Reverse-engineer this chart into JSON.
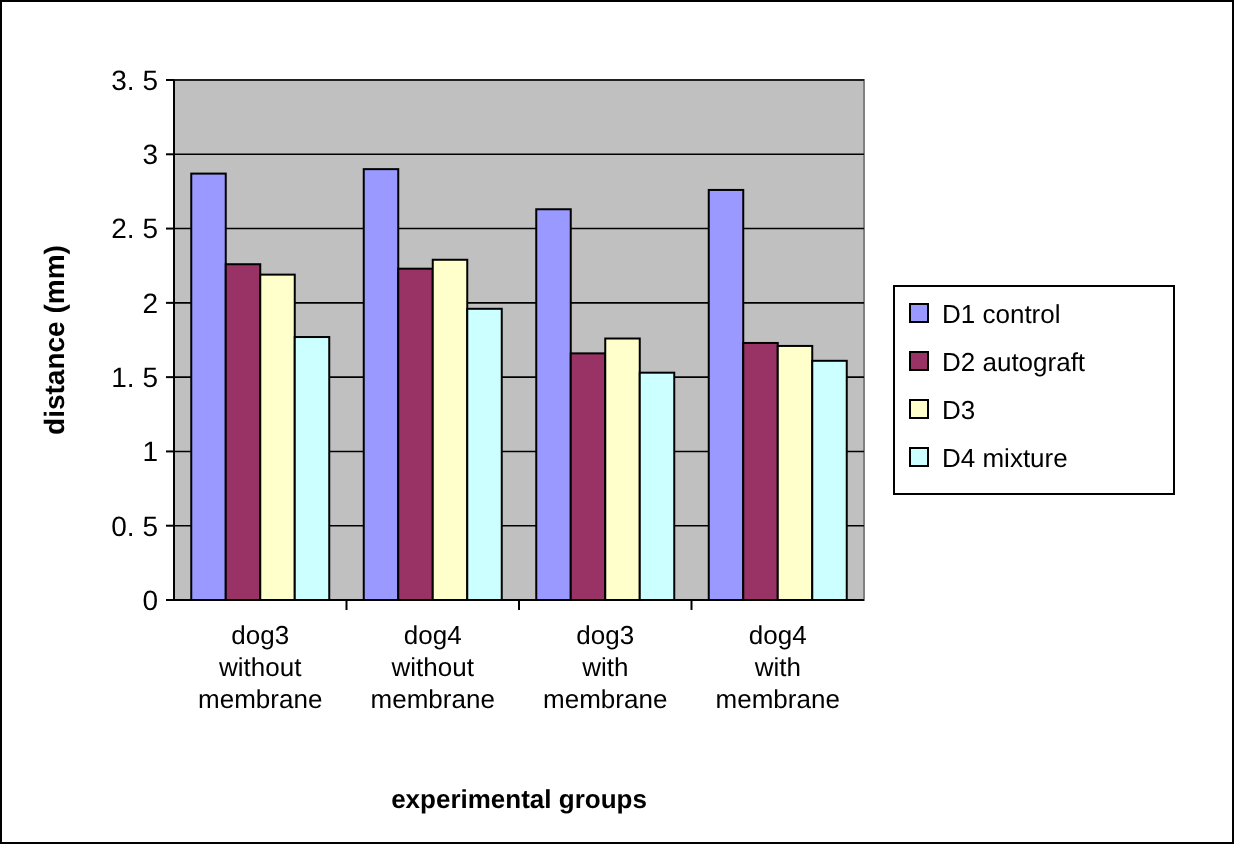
{
  "chart_data": {
    "type": "bar",
    "xlabel": "experimental groups",
    "ylabel": "distance (mm)",
    "categories": [
      "dog3 without membrane",
      "dog4 without membrane",
      "dog3 with membrane",
      "dog4 with membrane"
    ],
    "series": [
      {
        "name": "D1 control",
        "color": "#9999ff",
        "values": [
          2.87,
          2.9,
          2.63,
          2.76
        ]
      },
      {
        "name": "D2 autograft",
        "color": "#993366",
        "values": [
          2.26,
          2.23,
          1.66,
          1.73
        ]
      },
      {
        "name": "D3",
        "color": "#ffffcc",
        "values": [
          2.19,
          2.29,
          1.76,
          1.71
        ]
      },
      {
        "name": "D4 mixture",
        "color": "#ccffff",
        "values": [
          1.77,
          1.96,
          1.53,
          1.61
        ]
      }
    ],
    "ylim": [
      0,
      3.5
    ],
    "yticks": [
      0,
      {
        "value": 0.5,
        "label": "0. 5"
      },
      1,
      {
        "value": 1.5,
        "label": "1. 5"
      },
      2,
      {
        "value": 2.5,
        "label": "2. 5"
      },
      3,
      {
        "value": 3.5,
        "label": "3. 5"
      }
    ],
    "grid": "y",
    "legend": "right"
  }
}
